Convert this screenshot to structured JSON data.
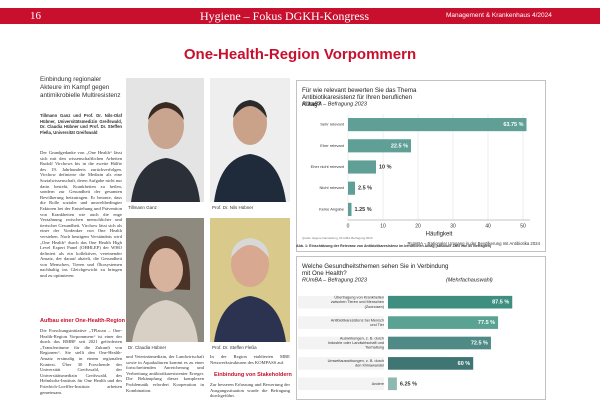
{
  "header": {
    "page": "16",
    "title": "Hygiene – Fokus DGKH-Kongress",
    "issue": "Management & Krankenhaus 4/2024"
  },
  "article": {
    "title": "One-Health-Region Vorpommern",
    "teaser": "Einbindung regionaler Akteure im Kampf gegen antimikrobielle Multiresistenz",
    "authors": "Tillmann Ganz und Prof. Dr. Nils-Olaf Hübner, Universitätsmedizin Greifswald, Dr. Claudia Hübner und Prof. Dr. Steffen Fleßa, Universität Greifswald",
    "body": "Der Grundgedanke von „One Health“ lässt sich mit den wissenschaftlichen Arbeiten Rudolf Virchows bis in die zweite Hälfte des 19. Jahrhunderts zurückverfolgen. Virchow definierte die Medizin als eine Sozialwissenschaft, deren Aufgabe nicht nur darin besteht, Krankheiten zu heilen, sondern zur Gesundheit der gesamten Bevölkerung beizutragen. Er betonte, dass die Rolle sozialer und umweltbedingter Faktoren bei der Entstehung und Prävention von Krankheiten wie auch die enge Verzahnung zwischen menschlicher und tierischer Gesundheit. Virchow lässt sich als einer der Vordenker von One Health verstehen. Nach heutigem Verständnis wird „One Health“ durch das One Health High Level Expert Panel (OHHLEP) der WHO definiert als ein kollektiver, vereinender Ansatz, der darauf abzielt, die Gesundheit von Menschen, Tieren und Ökosystemen nachhaltig ins Gleichgewicht zu bringen und zu optimieren.",
    "subheading": "Aufbau einer One-Health-Region",
    "body2": "Die Forschungsinitiative „TPlacan – One-Health-Region Vorpommern“ ist einer der durch das BMBF seit 2021 geförderten „Transferräume für die Zukunft von Regionen“. Sie stellt den One-Health-Ansatz erstmalig in einem regionalen Kontext. Über 30 Forschende der Universität Greifswald, der Universitätsmedizin Greifswald, des Helmholtz-Instituts für One Health und des Friedrich-Loeffler-Instituts arbeiten gemeinsam.",
    "middle": "und Veterinärmedizin, der Landwirtschaft sowie in Aquakulturen kommt es zu einer fortschreitenden Anreicherung und Verbreitung antibiotikaresistenter Erreger. Die Bekämpfung dieser komplexen Problematik erfordert Kooperation in Kombination.",
    "middle2": "In der Region etablierten MRE Netzwerkstrukturen des KOMPASS auf.",
    "subheading2": "Einbindung von Stakeholdern",
    "middle3": "Zur besseren Erfassung und Bewertung der Ausgangssituation wurde die Befragung durchgeführt."
  },
  "photos": [
    {
      "caption": "Tillmann Ganz"
    },
    {
      "caption": "Prof. Dr. Nils Hübner"
    },
    {
      "caption": "Dr. Claudia Hübner"
    },
    {
      "caption": "Prof. Dr. Steffen Fleßa"
    }
  ],
  "chart_data": [
    {
      "type": "bar",
      "orientation": "horizontal",
      "title": "Für wie relevant bewerten Sie das Thema Antibiotikaresistenz für Ihren beruflichen Alltag?",
      "subtitle": "RUmBA – Befragung 2023",
      "categories": [
        "Sehr relevant",
        "Eher relevant",
        "Eher nicht relevant",
        "Nicht relevant",
        "Keine Angabe"
      ],
      "values": [
        51,
        18,
        8,
        2,
        1
      ],
      "share_labels": [
        "63.75 %",
        "22.5 %",
        "10 %",
        "2.5 %",
        "1.25 %"
      ],
      "color": "#5f9f95",
      "xlim": [
        0,
        52
      ],
      "xticks": [
        0,
        10,
        20,
        30,
        40,
        50
      ],
      "xlabel": "Häufigkeit",
      "grid": true,
      "footer": "RUmBA – Rationaler Umgang in der Bevölkerung mit Antibiotika 2024",
      "source": "Quelle: Eigene Darstellung, RUmBA-Befragung 2023",
      "caption": "Abb. 1: Einschätzung der Relevanz von Antibiotikaresistenz im beruflichen Alltag (absolute Zahl von 80 Befragten)"
    },
    {
      "type": "bar",
      "orientation": "horizontal",
      "title": "Welche Gesundheitsthemen sehen Sie in Verbindung mit One Health?",
      "subtitle": "RUmBA – Befragung 2023",
      "note": "(Mehrfachauswahl)",
      "categories": [
        "Übertragung von Krankheiten zwischen Tieren und Menschen (Zoonosen)",
        "Antibiotikaresistenz bei Mensch und Tier",
        "Auswirkungen, z. B. durch Industrie oder Landwirtschaft und Tierhaltung",
        "Umweltauswirkungen, z. B. durch den Klimawandel",
        "Andere"
      ],
      "values": [
        87.5,
        77.5,
        72.5,
        60,
        6.25
      ],
      "value_labels": [
        "87.5 %",
        "77.5 %",
        "72.5 %",
        "60 %",
        "6.25 %"
      ],
      "colors": [
        "#3e8f7f",
        "#5aa393",
        "#4f8a86",
        "#3f7674",
        "#8fb8b0"
      ],
      "xlim": [
        0,
        100
      ]
    }
  ]
}
